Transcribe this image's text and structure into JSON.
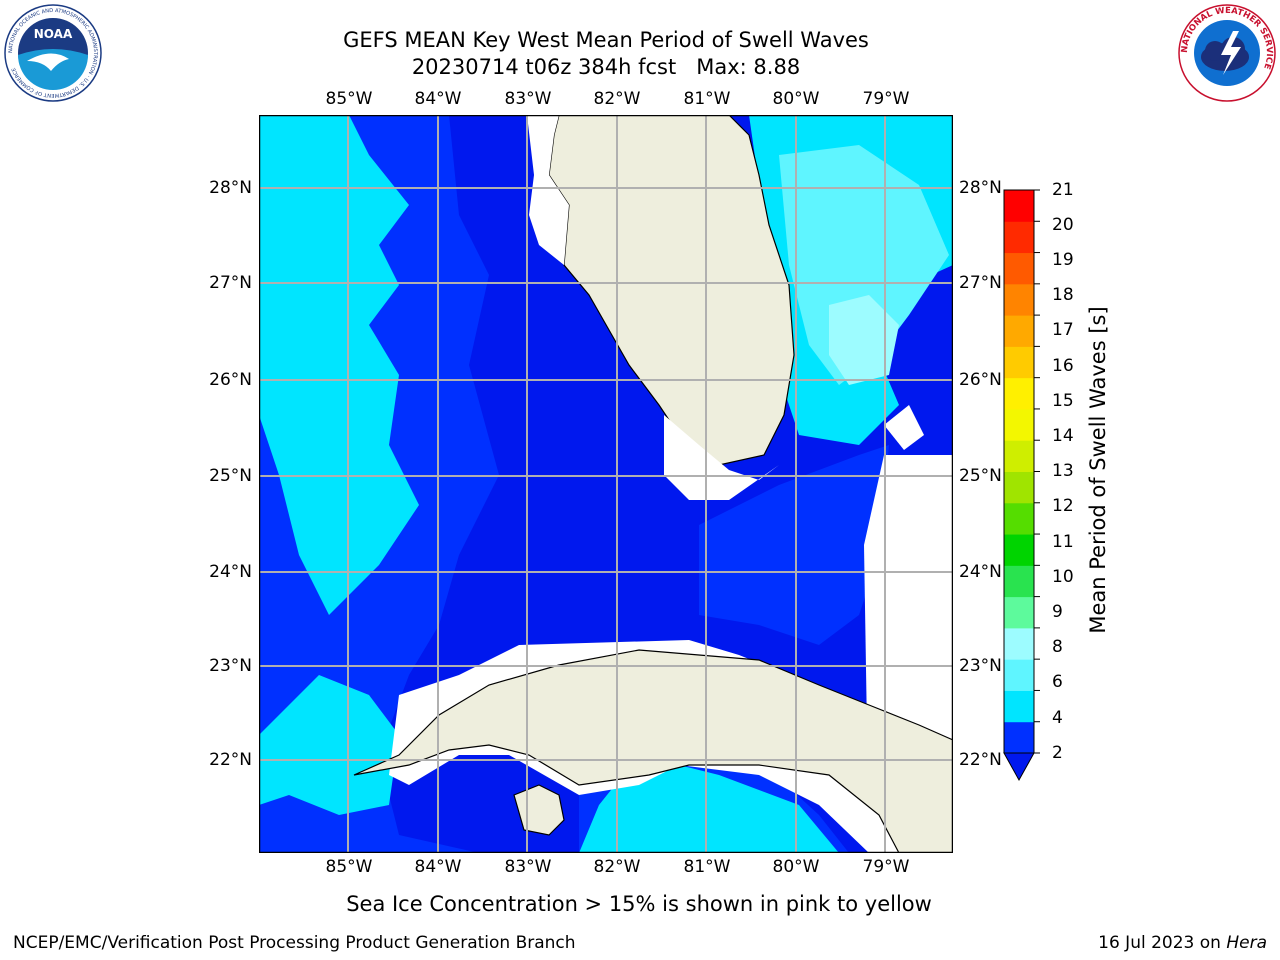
{
  "title": {
    "line1": "GEFS MEAN Key West Mean Period of Swell Waves",
    "run": "20230714 t06z 384h fcst",
    "max": "Max: 8.88"
  },
  "logos": {
    "noaa_text": "NOAA",
    "noaa_ring": "NATIONAL OCEANIC AND ATMOSPHERIC ADMINISTRATION · U.S. DEPARTMENT OF COMMERCE",
    "nws_ring": "NATIONAL WEATHER SERVICE"
  },
  "map": {
    "lon_labels": [
      "85°W",
      "84°W",
      "83°W",
      "82°W",
      "81°W",
      "80°W",
      "79°W"
    ],
    "lat_labels": [
      "28°N",
      "27°N",
      "26°N",
      "25°N",
      "24°N",
      "23°N",
      "22°N"
    ],
    "colors": {
      "land": "#eeeedd",
      "no_data": "#ffffff",
      "gridlines": "#b0b0b0",
      "coast": "#000000"
    }
  },
  "colorbar": {
    "label": "Mean Period of Swell Waves [s]",
    "ticks": [
      "21",
      "20",
      "19",
      "18",
      "17",
      "16",
      "15",
      "14",
      "13",
      "12",
      "11",
      "10",
      "9",
      "8",
      "6",
      "4",
      "2"
    ],
    "levels": [
      2,
      4,
      6,
      7,
      8,
      9,
      10,
      11,
      12,
      13,
      14,
      15,
      16,
      17,
      18,
      19,
      20,
      21
    ],
    "colors": [
      "#0030ff",
      "#00e5ff",
      "#5ff5ff",
      "#9dfcff",
      "#5dfa9c",
      "#29e34f",
      "#00d400",
      "#55dd00",
      "#a0e400",
      "#cfee00",
      "#f3f700",
      "#fff000",
      "#ffcb00",
      "#ffa900",
      "#ff8400",
      "#ff5a00",
      "#ff2a00",
      "#ff0000"
    ],
    "under_color": "#0018ee"
  },
  "ice_note": "Sea Ice Concentration > 15% is shown in pink to yellow",
  "footer": {
    "left": "NCEP/EMC/Verification Post Processing Product Generation Branch",
    "right_date": "16 Jul 2023 on",
    "right_host": "Hera"
  }
}
